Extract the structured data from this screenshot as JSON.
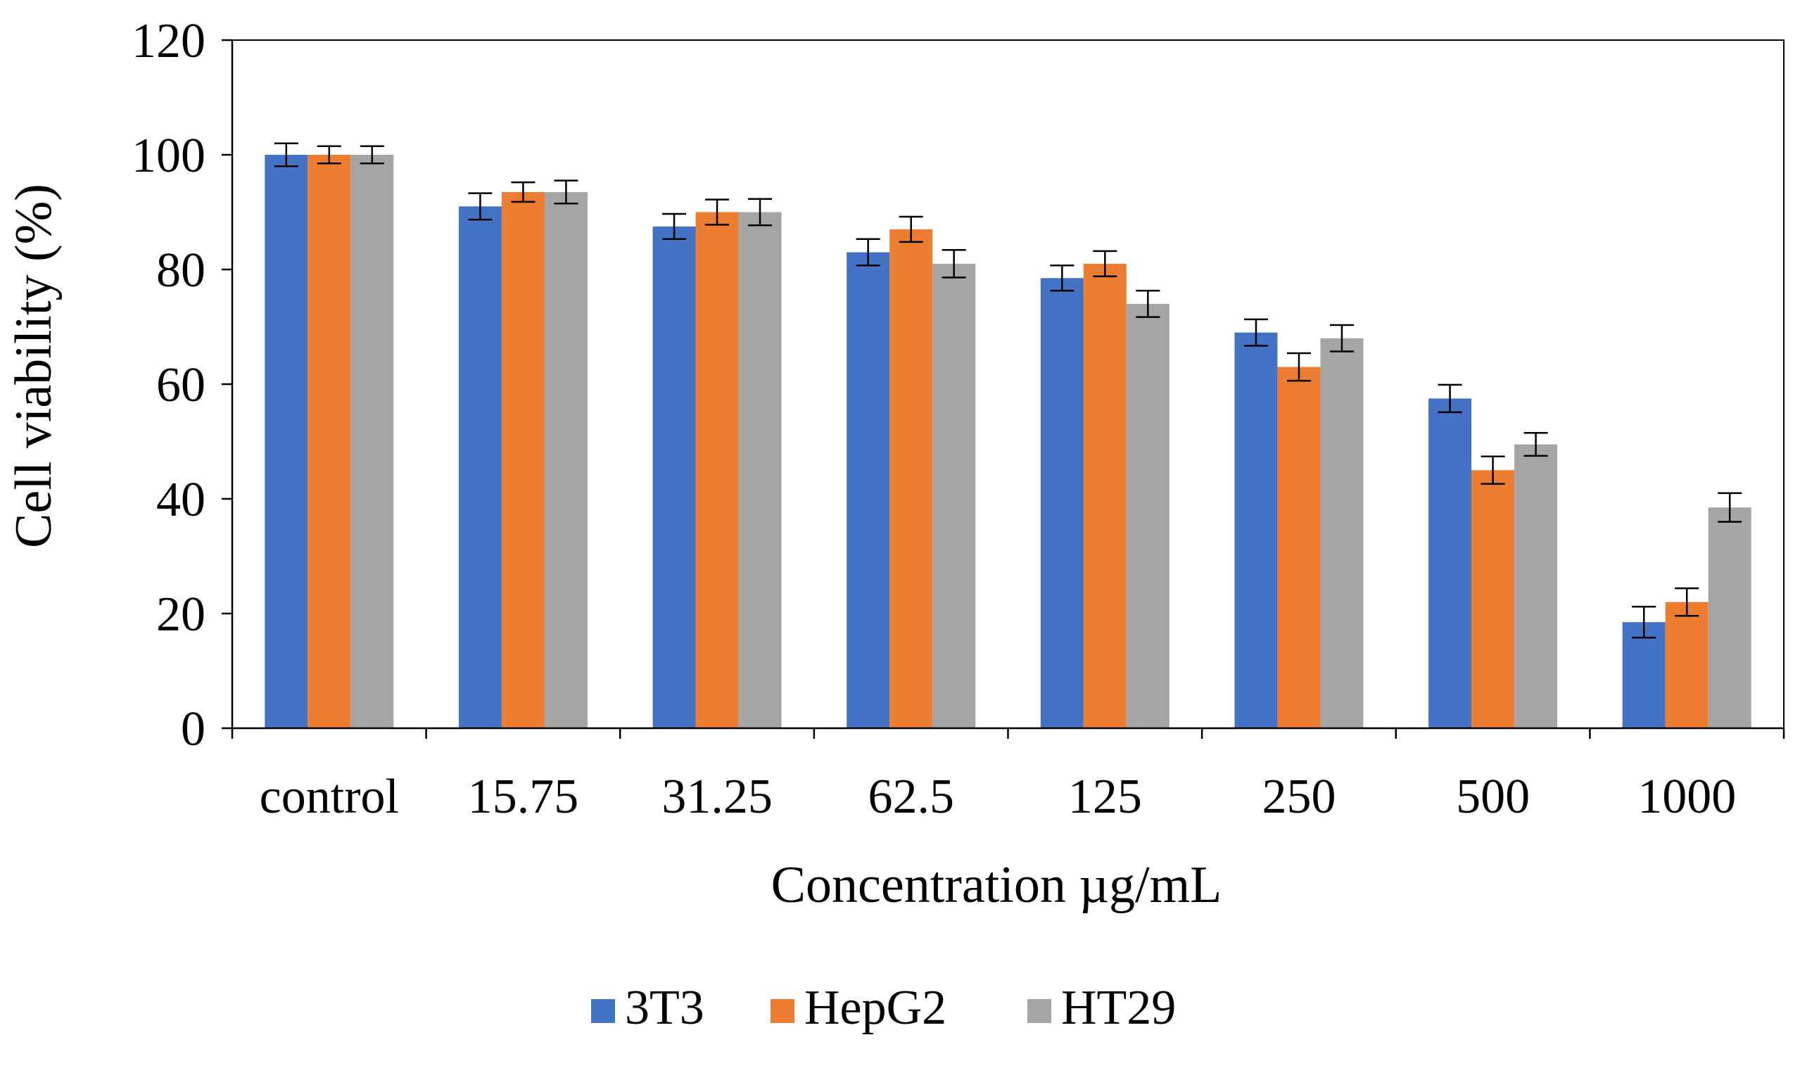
{
  "chart_data": {
    "type": "bar",
    "title": "",
    "xlabel": "Concentration µg/mL",
    "ylabel": "Cell viability (%)",
    "ylim": [
      0,
      120
    ],
    "yticks": [
      0,
      20,
      40,
      60,
      80,
      100,
      120
    ],
    "ytick_labels": [
      "0",
      "20",
      "40",
      "60",
      "80",
      "100",
      "120"
    ],
    "grid": false,
    "legend_position": "bottom-center",
    "categories": [
      "control",
      "15.75",
      "31.25",
      "62.5",
      "125",
      "250",
      "500",
      "1000"
    ],
    "series": [
      {
        "name": "3T3",
        "color": "#4472C4",
        "values": [
          100,
          91,
          87.5,
          83,
          78.5,
          69,
          57.5,
          18.5
        ],
        "errors": [
          2,
          2.3,
          2.2,
          2.3,
          2.2,
          2.3,
          2.4,
          2.7
        ]
      },
      {
        "name": "HepG2",
        "color": "#ED7D31",
        "values": [
          100,
          93.5,
          90,
          87,
          81,
          63,
          45,
          22
        ],
        "errors": [
          1.5,
          1.7,
          2.2,
          2.2,
          2.2,
          2.4,
          2.4,
          2.4
        ]
      },
      {
        "name": "HT29",
        "color": "#A5A5A5",
        "values": [
          100,
          93.5,
          90,
          81,
          74,
          68,
          49.5,
          38.5
        ],
        "errors": [
          1.5,
          2,
          2.3,
          2.4,
          2.3,
          2.3,
          2,
          2.5
        ]
      }
    ]
  }
}
